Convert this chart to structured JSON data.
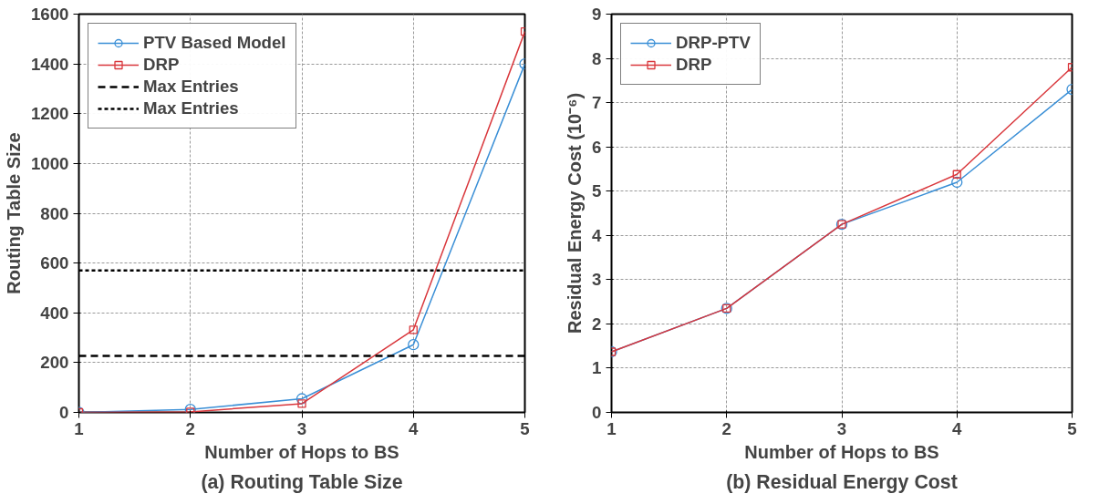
{
  "chart_data": [
    {
      "type": "line",
      "title": "(a) Routing Table Size",
      "xlabel": "Number of Hops to BS",
      "ylabel": "Routing Table Size",
      "x": [
        1,
        2,
        3,
        4,
        5
      ],
      "xlim": [
        1,
        5
      ],
      "xticks": [
        1,
        2,
        3,
        4,
        5
      ],
      "ylim": [
        0,
        1600
      ],
      "yticks": [
        0,
        200,
        400,
        600,
        800,
        1000,
        1200,
        1400,
        1600
      ],
      "grid": true,
      "legend": "top left",
      "line_style": "solid",
      "series": [
        {
          "name": "PTV Based Model",
          "color": "#3a8fd6",
          "marker": "circle",
          "values": [
            0,
            12,
            55,
            272,
            1400
          ]
        },
        {
          "name": "DRP",
          "color": "#d9373c",
          "marker": "square",
          "values": [
            0,
            2,
            35,
            332,
            1530
          ]
        }
      ],
      "ref_lines": [
        {
          "axis": "y",
          "value": 227,
          "label": "Max Entries",
          "color": "#000000",
          "line_style": "dashed"
        },
        {
          "axis": "y",
          "value": 570,
          "label": "Max Entries",
          "color": "#000000",
          "line_style": "dotted"
        }
      ]
    },
    {
      "type": "line",
      "title": "(b) Residual Energy Cost",
      "xlabel": "Number of Hops to BS",
      "ylabel": "Residual Energy Cost (10⁻⁶)",
      "x": [
        1,
        2,
        3,
        4,
        5
      ],
      "xlim": [
        1,
        5
      ],
      "xticks": [
        1,
        2,
        3,
        4,
        5
      ],
      "ylim": [
        0,
        9
      ],
      "yticks": [
        0,
        1,
        2,
        3,
        4,
        5,
        6,
        7,
        8,
        9
      ],
      "grid": true,
      "legend": "top left",
      "line_style": "solid",
      "series": [
        {
          "name": "DRP-PTV",
          "color": "#3a8fd6",
          "marker": "circle",
          "values": [
            1.37,
            2.35,
            4.25,
            5.2,
            7.3
          ]
        },
        {
          "name": "DRP",
          "color": "#d9373c",
          "marker": "square",
          "values": [
            1.37,
            2.35,
            4.25,
            5.38,
            7.8
          ]
        }
      ]
    }
  ]
}
